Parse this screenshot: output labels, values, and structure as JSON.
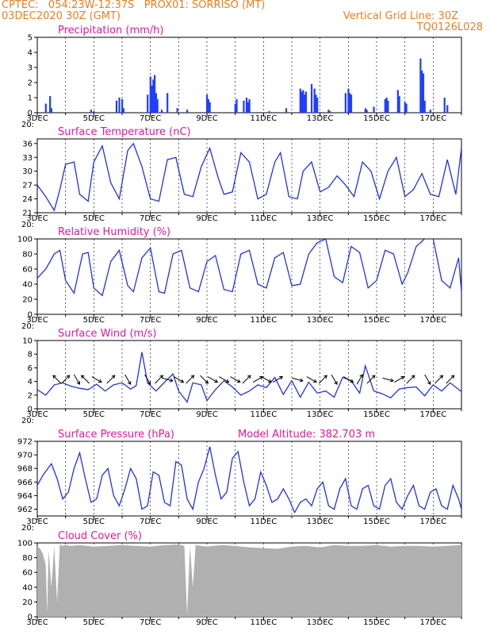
{
  "header": {
    "line1_left": "CPTEC:   054:23W-12:37S   PROX01: SORRISO (MT)",
    "line2_left": "03DEC2020 30Z (GMT)",
    "line2_right": "Vertical Grid Line: 30Z",
    "line3_right": "TQ0126L028"
  },
  "colors": {
    "header": "#f07d1e",
    "title": "#e0199b",
    "series": "#2233dd",
    "bars": "#1f3fff",
    "cloud": "#b0b0b0"
  },
  "x_tick_labels": [
    "3DEC",
    "5DEC",
    "7DEC",
    "9DEC",
    "11DEC",
    "13DEC",
    "15DEC",
    "17DEC"
  ],
  "cut_label": "20:",
  "chart_data": [
    {
      "type": "bar",
      "title": "Precipitation (mm/h)",
      "ylim": [
        0,
        5
      ],
      "yticks": [
        0,
        1,
        2,
        3,
        4,
        5
      ],
      "x_range_days": [
        3,
        18
      ],
      "x": [
        3.3,
        3.45,
        3.5,
        4.9,
        5.0,
        5.8,
        5.9,
        6.0,
        6.05,
        6.9,
        7.0,
        7.05,
        7.1,
        7.15,
        7.2,
        7.25,
        7.4,
        7.6,
        7.95,
        8.3,
        9.0,
        9.05,
        9.1,
        10.0,
        10.05,
        10.3,
        10.4,
        10.45,
        10.5,
        11.2,
        11.8,
        12.3,
        12.35,
        12.4,
        12.45,
        12.5,
        12.7,
        12.8,
        12.85,
        12.9,
        13.3,
        13.35,
        13.9,
        14.0,
        14.05,
        14.1,
        14.6,
        14.65,
        14.9,
        15.3,
        15.35,
        15.4,
        15.75,
        15.8,
        16.0,
        16.05,
        16.55,
        16.6,
        16.65,
        16.7,
        16.9,
        17.4,
        17.5
      ],
      "values": [
        0.6,
        1.1,
        0.3,
        0.2,
        0.1,
        0.8,
        1.0,
        0.9,
        0.3,
        1.2,
        2.4,
        1.8,
        2.2,
        2.5,
        1.3,
        0.9,
        0.2,
        1.3,
        0.3,
        0.2,
        1.2,
        0.9,
        0.7,
        0.6,
        0.9,
        0.8,
        1.0,
        0.7,
        0.9,
        0.1,
        0.3,
        1.6,
        1.4,
        1.5,
        1.2,
        1.4,
        1.9,
        1.6,
        1.2,
        1.0,
        0.2,
        0.1,
        1.3,
        1.6,
        1.3,
        1.2,
        0.3,
        0.2,
        0.4,
        0.9,
        1.0,
        0.8,
        1.5,
        1.1,
        0.7,
        0.6,
        3.6,
        2.8,
        2.6,
        0.8,
        0.2,
        1.0,
        0.5
      ]
    },
    {
      "type": "line",
      "title": "Surface Temperature (nC)",
      "ylim": [
        21,
        37
      ],
      "yticks": [
        21,
        24,
        27,
        30,
        33,
        36
      ],
      "x_range_days": [
        3,
        18
      ],
      "x": [
        3.0,
        3.3,
        3.6,
        3.8,
        4.0,
        4.3,
        4.5,
        4.8,
        5.0,
        5.3,
        5.6,
        5.9,
        6.2,
        6.4,
        6.7,
        7.0,
        7.3,
        7.6,
        7.9,
        8.2,
        8.5,
        8.8,
        9.1,
        9.4,
        9.6,
        9.9,
        10.2,
        10.5,
        10.8,
        11.1,
        11.4,
        11.6,
        11.9,
        12.2,
        12.4,
        12.7,
        13.0,
        13.3,
        13.6,
        13.9,
        14.2,
        14.5,
        14.8,
        15.1,
        15.4,
        15.7,
        16.0,
        16.3,
        16.6,
        16.9,
        17.2,
        17.5,
        17.8,
        18.0
      ],
      "values": [
        27,
        24.5,
        21.5,
        26,
        31.5,
        32,
        25,
        23.5,
        32,
        35.5,
        27.5,
        24,
        34.5,
        36,
        31,
        24,
        23.5,
        32.5,
        33,
        25,
        24.5,
        31,
        35,
        28.5,
        25,
        25.5,
        34,
        32,
        24,
        25,
        32,
        34,
        24.5,
        24,
        30,
        32,
        25.5,
        26.5,
        29,
        27,
        24.5,
        32,
        30,
        24,
        30,
        33,
        24.5,
        26,
        29.5,
        25,
        24.5,
        32.5,
        25,
        35
      ]
    },
    {
      "type": "line",
      "title": "Relative Humidity (%)",
      "ylim": [
        0,
        100
      ],
      "yticks": [
        0,
        20,
        40,
        60,
        80,
        100
      ],
      "x_range_days": [
        3,
        18
      ],
      "x": [
        3.0,
        3.3,
        3.6,
        3.8,
        4.0,
        4.3,
        4.6,
        4.8,
        5.0,
        5.3,
        5.6,
        5.9,
        6.2,
        6.4,
        6.7,
        7.0,
        7.3,
        7.5,
        7.8,
        8.1,
        8.4,
        8.7,
        9.0,
        9.3,
        9.6,
        9.9,
        10.2,
        10.5,
        10.8,
        11.1,
        11.4,
        11.7,
        12.0,
        12.3,
        12.6,
        12.9,
        13.2,
        13.5,
        13.8,
        14.1,
        14.4,
        14.7,
        15.0,
        15.3,
        15.6,
        15.9,
        16.1,
        16.4,
        16.7,
        17.0,
        17.3,
        17.6,
        17.9,
        18.0
      ],
      "values": [
        48,
        60,
        80,
        85,
        45,
        28,
        80,
        82,
        35,
        25,
        70,
        85,
        38,
        30,
        75,
        88,
        30,
        28,
        80,
        85,
        35,
        30,
        70,
        78,
        33,
        30,
        80,
        85,
        40,
        35,
        75,
        82,
        38,
        40,
        80,
        95,
        100,
        50,
        42,
        90,
        82,
        35,
        45,
        85,
        80,
        40,
        55,
        90,
        100,
        100,
        45,
        35,
        75,
        30
      ]
    },
    {
      "type": "line",
      "title": "Surface Wind (m/s)",
      "ylim": [
        0,
        10
      ],
      "yticks": [
        0,
        2,
        4,
        6,
        8,
        10
      ],
      "x_range_days": [
        3,
        18
      ],
      "x": [
        3.0,
        3.3,
        3.6,
        3.9,
        4.2,
        4.5,
        4.8,
        5.1,
        5.4,
        5.7,
        6.0,
        6.3,
        6.5,
        6.7,
        6.9,
        7.2,
        7.5,
        7.8,
        8.0,
        8.3,
        8.5,
        8.8,
        9.0,
        9.3,
        9.6,
        9.9,
        10.2,
        10.5,
        10.8,
        11.1,
        11.4,
        11.7,
        12.0,
        12.3,
        12.6,
        12.9,
        13.2,
        13.5,
        13.8,
        14.1,
        14.4,
        14.6,
        14.9,
        15.2,
        15.5,
        15.8,
        16.1,
        16.4,
        16.7,
        17.0,
        17.3,
        17.6,
        18.0
      ],
      "values": [
        2.8,
        2.0,
        3.5,
        3.8,
        3.3,
        3.0,
        2.8,
        3.6,
        2.6,
        3.5,
        3.8,
        2.9,
        3.4,
        8.3,
        3.8,
        2.6,
        3.9,
        5.1,
        2.6,
        1.0,
        3.8,
        3.5,
        1.2,
        2.8,
        4.1,
        3.2,
        2.0,
        2.6,
        3.5,
        3.1,
        4.6,
        2.1,
        4.1,
        1.7,
        3.9,
        2.3,
        2.6,
        1.7,
        4.6,
        4.1,
        2.3,
        6.3,
        2.6,
        2.2,
        1.6,
        2.9,
        3.1,
        3.2,
        1.9,
        3.5,
        2.6,
        3.8,
        2.5
      ],
      "arrow_dirs_deg": [
        135,
        45,
        300,
        135,
        330,
        45,
        300,
        300,
        45,
        345,
        330,
        45,
        315,
        330,
        330,
        330,
        45,
        30,
        330,
        30,
        345,
        330,
        45,
        300,
        330,
        60,
        45,
        345,
        30,
        45,
        300,
        45,
        45
      ],
      "arrow_x": [
        3.7,
        4.0,
        4.4,
        4.7,
        5.1,
        5.6,
        6.2,
        6.9,
        7.3,
        7.6,
        8.0,
        8.4,
        8.9,
        9.2,
        9.6,
        10.0,
        10.4,
        10.8,
        11.1,
        11.5,
        12.2,
        12.7,
        13.1,
        13.5,
        14.0,
        14.4,
        14.8,
        15.4,
        15.8,
        16.2,
        16.8,
        17.2,
        17.6
      ]
    },
    {
      "type": "line",
      "title": "Surface Pressure (hPa)",
      "annotation": "Model Altitude: 382.703  m",
      "ylim": [
        961,
        972
      ],
      "yticks": [
        962,
        964,
        966,
        968,
        970,
        972
      ],
      "x_range_days": [
        3,
        18
      ],
      "x": [
        3.0,
        3.2,
        3.5,
        3.7,
        3.9,
        4.1,
        4.3,
        4.5,
        4.7,
        4.9,
        5.1,
        5.3,
        5.5,
        5.7,
        5.9,
        6.1,
        6.3,
        6.5,
        6.7,
        6.9,
        7.1,
        7.3,
        7.5,
        7.7,
        7.9,
        8.1,
        8.3,
        8.5,
        8.7,
        8.9,
        9.1,
        9.3,
        9.5,
        9.7,
        9.9,
        10.1,
        10.3,
        10.5,
        10.7,
        10.9,
        11.1,
        11.3,
        11.5,
        11.7,
        11.9,
        12.1,
        12.3,
        12.5,
        12.7,
        12.9,
        13.1,
        13.3,
        13.5,
        13.7,
        13.9,
        14.1,
        14.3,
        14.5,
        14.7,
        14.9,
        15.1,
        15.3,
        15.5,
        15.7,
        15.9,
        16.1,
        16.3,
        16.5,
        16.7,
        16.9,
        17.1,
        17.3,
        17.5,
        17.7,
        17.9,
        18.0
      ],
      "values": [
        965.5,
        967,
        968.7,
        966.5,
        963.5,
        964.5,
        968,
        970.3,
        966.5,
        963,
        963.5,
        967,
        968,
        964,
        962.5,
        965,
        968,
        966.5,
        962,
        962.5,
        967.5,
        967,
        963,
        962.5,
        969,
        968.5,
        963.5,
        962,
        966,
        968,
        971.2,
        967,
        963.5,
        964.5,
        969.5,
        970.5,
        966,
        962.5,
        963.5,
        967.5,
        965.5,
        963,
        963.5,
        965,
        963.5,
        961.5,
        963,
        963.5,
        962.5,
        965,
        966,
        962.5,
        962,
        965,
        966.5,
        962.5,
        962,
        965,
        965.5,
        962.5,
        962,
        965.5,
        966.5,
        963,
        962,
        964,
        965.5,
        962.5,
        962,
        964.5,
        965,
        962.5,
        962,
        965.5,
        963.5,
        962
      ]
    },
    {
      "type": "area",
      "title": "Cloud Cover (%)",
      "ylim": [
        0,
        100
      ],
      "yticks": [
        0,
        20,
        40,
        60,
        80,
        100
      ],
      "x_range_days": [
        3,
        18
      ],
      "x": [
        3.0,
        3.1,
        3.2,
        3.3,
        3.35,
        3.4,
        3.5,
        3.6,
        3.7,
        3.8,
        3.9,
        4.0,
        4.2,
        4.5,
        5.0,
        5.5,
        6.0,
        6.5,
        7.0,
        7.5,
        8.0,
        8.2,
        8.3,
        8.4,
        8.5,
        8.6,
        8.8,
        9.0,
        9.5,
        10.0,
        10.5,
        11.0,
        11.5,
        12.0,
        12.5,
        13.0,
        13.5,
        14.0,
        14.5,
        15.0,
        15.5,
        16.0,
        16.5,
        17.0,
        17.5,
        18.0
      ],
      "values": [
        96,
        92,
        85,
        70,
        5,
        90,
        40,
        96,
        20,
        98,
        96,
        97,
        96,
        97,
        95,
        96,
        97,
        96,
        95,
        97,
        98,
        96,
        3,
        96,
        40,
        97,
        96,
        95,
        97,
        96,
        94,
        93,
        92,
        95,
        96,
        94,
        97,
        96,
        96,
        97,
        95,
        96,
        96,
        95,
        96,
        97
      ]
    }
  ]
}
